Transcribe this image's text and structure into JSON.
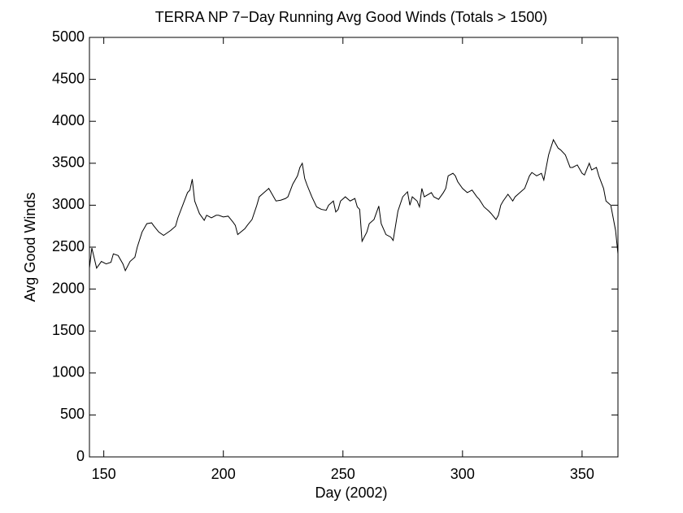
{
  "chart_data": {
    "type": "line",
    "title": "TERRA NP 7−Day Running Avg Good Winds (Totals > 1500)",
    "x_label": "Day (2002)",
    "y_label": "Avg Good Winds",
    "xlim": [
      144,
      365
    ],
    "ylim": [
      0,
      5000
    ],
    "xticks": [
      150,
      200,
      250,
      300,
      350
    ],
    "yticks": [
      0,
      500,
      1000,
      1500,
      2000,
      2500,
      3000,
      3500,
      4000,
      4500,
      5000
    ],
    "x": [
      144,
      145,
      147,
      149,
      151,
      153,
      154,
      156,
      158,
      159,
      161,
      163,
      164,
      166,
      168,
      170,
      171,
      173,
      175,
      176,
      178,
      180,
      181,
      183,
      185,
      186,
      187,
      188,
      190,
      192,
      193,
      195,
      197,
      198,
      200,
      202,
      204,
      205,
      206,
      209,
      210,
      212,
      214,
      215,
      217,
      219,
      220,
      222,
      224,
      226,
      227,
      229,
      231,
      232,
      233,
      234,
      235,
      237,
      239,
      241,
      243,
      244,
      246,
      247,
      248,
      249,
      251,
      253,
      255,
      256,
      257,
      258,
      260,
      261,
      263,
      265,
      266,
      268,
      270,
      271,
      273,
      275,
      277,
      278,
      279,
      281,
      282,
      283,
      284,
      287,
      288,
      290,
      292,
      293,
      294,
      296,
      297,
      298,
      300,
      302,
      304,
      306,
      307,
      309,
      311,
      312,
      314,
      315,
      316,
      317,
      319,
      321,
      322,
      324,
      326,
      328,
      329,
      331,
      333,
      334,
      335,
      336,
      338,
      340,
      341,
      343,
      345,
      346,
      348,
      350,
      351,
      353,
      354,
      356,
      357,
      359,
      360,
      362,
      363,
      364,
      365
    ],
    "series": [
      {
        "name": "Avg Good Winds",
        "color": "#000000",
        "values": [
          2250,
          2490,
          2250,
          2330,
          2300,
          2320,
          2420,
          2400,
          2300,
          2220,
          2330,
          2380,
          2500,
          2680,
          2780,
          2790,
          2750,
          2680,
          2640,
          2660,
          2700,
          2750,
          2850,
          3000,
          3150,
          3180,
          3310,
          3050,
          2900,
          2820,
          2880,
          2850,
          2880,
          2880,
          2860,
          2870,
          2800,
          2760,
          2650,
          2720,
          2760,
          2830,
          3000,
          3100,
          3150,
          3200,
          3150,
          3050,
          3060,
          3080,
          3100,
          3250,
          3350,
          3450,
          3500,
          3320,
          3240,
          3100,
          2980,
          2950,
          2940,
          3000,
          3050,
          2920,
          2950,
          3050,
          3100,
          3050,
          3080,
          2980,
          2950,
          2570,
          2680,
          2780,
          2830,
          2990,
          2780,
          2650,
          2620,
          2580,
          2930,
          3100,
          3160,
          3000,
          3100,
          3050,
          2980,
          3200,
          3100,
          3150,
          3100,
          3070,
          3150,
          3200,
          3350,
          3380,
          3350,
          3280,
          3200,
          3150,
          3180,
          3100,
          3070,
          2980,
          2930,
          2900,
          2830,
          2880,
          3000,
          3050,
          3130,
          3050,
          3100,
          3150,
          3200,
          3350,
          3390,
          3350,
          3380,
          3300,
          3450,
          3600,
          3780,
          3680,
          3660,
          3600,
          3450,
          3450,
          3480,
          3380,
          3360,
          3500,
          3420,
          3450,
          3350,
          3200,
          3050,
          3000,
          2850,
          2700,
          2420
        ]
      }
    ]
  }
}
